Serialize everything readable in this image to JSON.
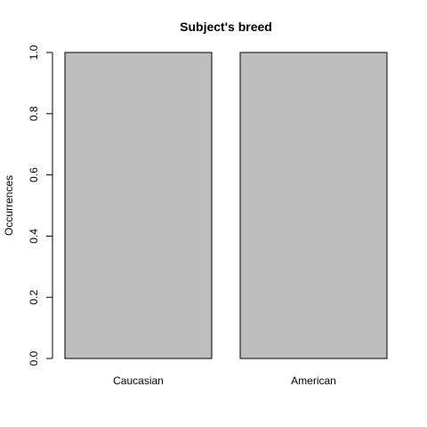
{
  "chart_data": {
    "type": "bar",
    "title": "Subject's breed",
    "xlabel": "",
    "ylabel": "Occurrences",
    "categories": [
      "Caucasian",
      "American"
    ],
    "values": [
      1,
      1
    ],
    "ylim": [
      0,
      1
    ],
    "yticks": [
      "0.0",
      "0.2",
      "0.4",
      "0.6",
      "0.8",
      "1.0"
    ],
    "bar_color": "#bebebe",
    "bar_border_color": "#000000",
    "grid": false,
    "legend": "none"
  }
}
